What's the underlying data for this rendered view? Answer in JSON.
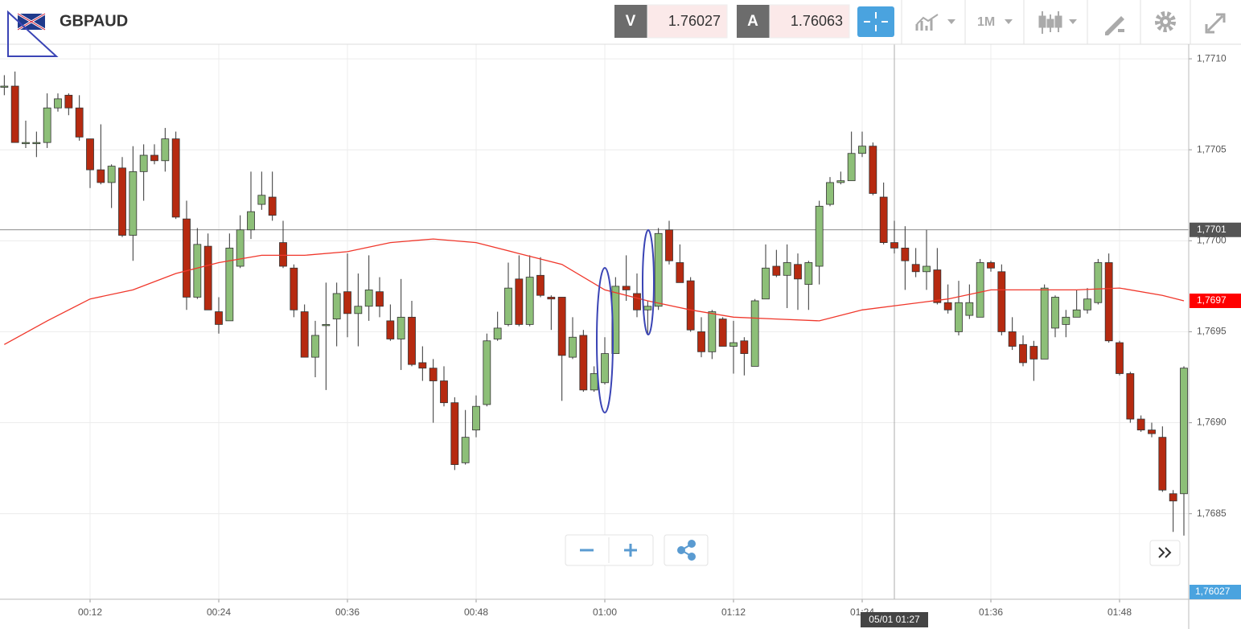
{
  "header": {
    "symbol": "GBPAUD",
    "bid": {
      "letter": "V",
      "price": "1.76027"
    },
    "ask": {
      "letter": "A",
      "price": "1.76063"
    },
    "timeframe": "1M"
  },
  "chart_data": {
    "type": "candlestick",
    "up_color": "#8dbf78",
    "down_color": "#b62a10",
    "wick_color": "#333333",
    "x": [
      4,
      5,
      6,
      7,
      8,
      9,
      10,
      11,
      12,
      13,
      14,
      15,
      16,
      17,
      18,
      19,
      20,
      21,
      22,
      23,
      24,
      25,
      26,
      27,
      28,
      29,
      30,
      31,
      32,
      33,
      34,
      35,
      36,
      37,
      38,
      39,
      40,
      41,
      42,
      43,
      44,
      45,
      46,
      47,
      48,
      49,
      50,
      51,
      52,
      53,
      54,
      55,
      56,
      57,
      58,
      59,
      60,
      61,
      62,
      63,
      64,
      65,
      66,
      67,
      68,
      69,
      70,
      71,
      72,
      73,
      74,
      75,
      76,
      77,
      78,
      79,
      80,
      81,
      82,
      83,
      84,
      85,
      86,
      87,
      88,
      89,
      90,
      91,
      92,
      93,
      94,
      95,
      96,
      97,
      98,
      99,
      100,
      101,
      102,
      103,
      104,
      105,
      106,
      107,
      108,
      109,
      110,
      111,
      112,
      113,
      114
    ],
    "open": [
      1.77085,
      1.77085,
      1.77054,
      1.77054,
      1.77054,
      1.77073,
      1.7708,
      1.77073,
      1.77056,
      1.77039,
      1.77032,
      1.7704,
      1.77003,
      1.77038,
      1.77047,
      1.77044,
      1.77056,
      1.77012,
      1.76969,
      1.76997,
      1.76961,
      1.76956,
      1.76986,
      1.77006,
      1.7702,
      1.77024,
      1.76999,
      1.76985,
      1.76961,
      1.76936,
      1.76954,
      1.76957,
      1.76972,
      1.7696,
      1.76964,
      1.76972,
      1.76956,
      1.76946,
      1.76958,
      1.76933,
      1.7693,
      1.76923,
      1.76911,
      1.76878,
      1.76896,
      1.7691,
      1.76946,
      1.76954,
      1.76979,
      1.76954,
      1.76981,
      1.76969,
      1.76969,
      1.76936,
      1.76948,
      1.76918,
      1.76922,
      1.76938,
      1.76975,
      1.76971,
      1.76962,
      1.76964,
      1.77006,
      1.76988,
      1.76978,
      1.7695,
      1.76939,
      1.76957,
      1.76942,
      1.76945,
      1.76931,
      1.76968,
      1.76986,
      1.76981,
      1.76987,
      1.76976,
      1.76986,
      1.7702,
      1.77032,
      1.77033,
      1.77048,
      1.77052,
      1.77024,
      1.76999,
      1.76996,
      1.76987,
      1.76983,
      1.76984,
      1.76966,
      1.7695,
      1.76959,
      1.76958,
      1.76988,
      1.76983,
      1.7695,
      1.76943,
      1.76942,
      1.76935,
      1.76952,
      1.76954,
      1.76958,
      1.76962,
      1.76966,
      1.76988,
      1.76944,
      1.76927,
      1.76902,
      1.76896,
      1.76892,
      1.76861,
      1.76861
    ],
    "high": [
      1.77091,
      1.77093,
      1.77066,
      1.7706,
      1.77081,
      1.77081,
      1.77081,
      1.7708,
      1.77056,
      1.77064,
      1.77042,
      1.77046,
      1.77052,
      1.77053,
      1.77053,
      1.77062,
      1.7706,
      1.77022,
      1.77007,
      1.77004,
      1.76969,
      1.77004,
      1.77014,
      1.77038,
      1.77038,
      1.77038,
      1.77011,
      1.76987,
      1.76965,
      1.76956,
      1.76977,
      1.76977,
      1.76993,
      1.76982,
      1.76992,
      1.7698,
      1.76965,
      1.76979,
      1.76967,
      1.76942,
      1.76935,
      1.76931,
      1.76914,
      1.76907,
      1.76915,
      1.76949,
      1.76961,
      1.76988,
      1.76992,
      1.76992,
      1.76991,
      1.7697,
      1.76969,
      1.76958,
      1.76951,
      1.76931,
      1.76947,
      1.7698,
      1.76992,
      1.76982,
      1.76967,
      1.77007,
      1.77011,
      1.76998,
      1.7698,
      1.76958,
      1.76962,
      1.76958,
      1.76956,
      1.76947,
      1.76968,
      1.76998,
      1.76995,
      1.76998,
      1.76993,
      1.76989,
      1.77022,
      1.77035,
      1.77038,
      1.7706,
      1.7706,
      1.77054,
      1.77032,
      1.77011,
      1.77008,
      1.76996,
      1.77006,
      1.76996,
      1.76976,
      1.76978,
      1.76976,
      1.7699,
      1.76989,
      1.76987,
      1.76958,
      1.76948,
      1.76945,
      1.76976,
      1.7697,
      1.76962,
      1.76973,
      1.76974,
      1.7699,
      1.76993,
      1.76945,
      1.76928,
      1.76904,
      1.769,
      1.76898,
      1.76863,
      1.76931
    ],
    "low": [
      1.7708,
      1.77054,
      1.77051,
      1.77046,
      1.77051,
      1.77071,
      1.77069,
      1.77055,
      1.77029,
      1.77031,
      1.77018,
      1.77002,
      1.76989,
      1.77022,
      1.77042,
      1.77038,
      1.77012,
      1.76962,
      1.76968,
      1.76962,
      1.76949,
      1.76956,
      1.76985,
      1.77001,
      1.77017,
      1.77011,
      1.76985,
      1.76958,
      1.76936,
      1.76925,
      1.76918,
      1.76942,
      1.76947,
      1.76942,
      1.76956,
      1.76958,
      1.76945,
      1.76929,
      1.76931,
      1.76923,
      1.769,
      1.76909,
      1.76874,
      1.76877,
      1.76892,
      1.76909,
      1.76945,
      1.76953,
      1.76953,
      1.76953,
      1.76969,
      1.76951,
      1.76912,
      1.76935,
      1.76917,
      1.76917,
      1.76921,
      1.76938,
      1.76967,
      1.76958,
      1.76949,
      1.76962,
      1.76987,
      1.76977,
      1.7695,
      1.76936,
      1.76935,
      1.76942,
      1.76927,
      1.76926,
      1.76931,
      1.76968,
      1.7698,
      1.76963,
      1.76962,
      1.76962,
      1.76976,
      1.77019,
      1.77031,
      1.77033,
      1.77046,
      1.77025,
      1.76998,
      1.76993,
      1.76973,
      1.7698,
      1.76973,
      1.76965,
      1.7696,
      1.76948,
      1.76957,
      1.76958,
      1.76983,
      1.76948,
      1.7694,
      1.76931,
      1.76923,
      1.76935,
      1.76947,
      1.76947,
      1.76958,
      1.7696,
      1.76965,
      1.76944,
      1.76926,
      1.769,
      1.76895,
      1.76892,
      1.76862,
      1.7684,
      1.76838
    ],
    "close": [
      1.77085,
      1.77054,
      1.77054,
      1.77054,
      1.77073,
      1.77078,
      1.77073,
      1.77057,
      1.77039,
      1.77032,
      1.77041,
      1.77003,
      1.77038,
      1.77047,
      1.77044,
      1.77056,
      1.77013,
      1.76969,
      1.76998,
      1.76962,
      1.76954,
      1.76996,
      1.77006,
      1.77016,
      1.77025,
      1.77014,
      1.76986,
      1.76962,
      1.76936,
      1.76948,
      1.76954,
      1.76971,
      1.7696,
      1.76964,
      1.76973,
      1.76964,
      1.76946,
      1.76958,
      1.76932,
      1.7693,
      1.76923,
      1.76911,
      1.76877,
      1.76892,
      1.76909,
      1.76945,
      1.76952,
      1.76974,
      1.76954,
      1.7698,
      1.7697,
      1.76968,
      1.76937,
      1.76947,
      1.76918,
      1.76927,
      1.76938,
      1.76975,
      1.76973,
      1.76962,
      1.76964,
      1.77004,
      1.76989,
      1.76977,
      1.76951,
      1.76939,
      1.76961,
      1.76942,
      1.76944,
      1.76938,
      1.76967,
      1.76985,
      1.76981,
      1.76988,
      1.76979,
      1.76988,
      1.77019,
      1.77032,
      1.77033,
      1.77048,
      1.77052,
      1.77026,
      1.76999,
      1.76996,
      1.76989,
      1.76983,
      1.76986,
      1.76966,
      1.76962,
      1.76966,
      1.76966,
      1.76988,
      1.76985,
      1.7695,
      1.76942,
      1.76933,
      1.76935,
      1.76974,
      1.76969,
      1.76958,
      1.76962,
      1.76968,
      1.76988,
      1.76945,
      1.76927,
      1.76902,
      1.76896,
      1.76894,
      1.76863,
      1.76857,
      1.7693
    ],
    "overlays": [
      {
        "type": "line",
        "color": "#f0372b",
        "x": [
          4,
          8,
          12,
          16,
          20,
          24,
          28,
          32,
          36,
          40,
          44,
          48,
          52,
          56,
          60,
          64,
          68,
          72,
          76,
          80,
          84,
          88,
          92,
          96,
          100,
          104,
          108,
          112,
          114
        ],
        "values": [
          1.76943,
          1.76956,
          1.76968,
          1.76973,
          1.76982,
          1.76988,
          1.76992,
          1.76992,
          1.76994,
          1.76999,
          1.77001,
          1.76999,
          1.76993,
          1.76987,
          1.76973,
          1.76967,
          1.76962,
          1.76958,
          1.76957,
          1.76956,
          1.76962,
          1.76965,
          1.76968,
          1.76973,
          1.76973,
          1.76973,
          1.76974,
          1.7697,
          1.76967
        ],
        "tag": {
          "value": 1.76967,
          "label": "1,7697"
        }
      }
    ],
    "xlim": [
      3.6,
      114.45
    ],
    "xticks": [
      {
        "value": 12,
        "label": "00:12"
      },
      {
        "value": 24,
        "label": "00:24"
      },
      {
        "value": 36,
        "label": "00:36"
      },
      {
        "value": 48,
        "label": "00:48"
      },
      {
        "value": 60,
        "label": "01:00"
      },
      {
        "value": 72,
        "label": "01:12"
      },
      {
        "value": 84,
        "label": "01:24"
      },
      {
        "value": 96,
        "label": "01:36"
      },
      {
        "value": 108,
        "label": "01:48"
      }
    ],
    "ylim": [
      1.76803,
      1.77108
    ],
    "yticks": [
      {
        "value": 1.7685,
        "label": "1,7685"
      },
      {
        "value": 1.769,
        "label": "1,7690"
      },
      {
        "value": 1.7695,
        "label": "1,7695"
      },
      {
        "value": 1.77,
        "label": "1,7700"
      },
      {
        "value": 1.7705,
        "label": "1,7705"
      },
      {
        "value": 1.771,
        "label": "1,7710"
      }
    ],
    "grid": true,
    "crosshair": {
      "x": {
        "value": 87,
        "label": "05/01 01:27"
      },
      "y": {
        "value": 1.77006,
        "label": "1,7701"
      }
    },
    "bid_tag": "1,76027"
  }
}
